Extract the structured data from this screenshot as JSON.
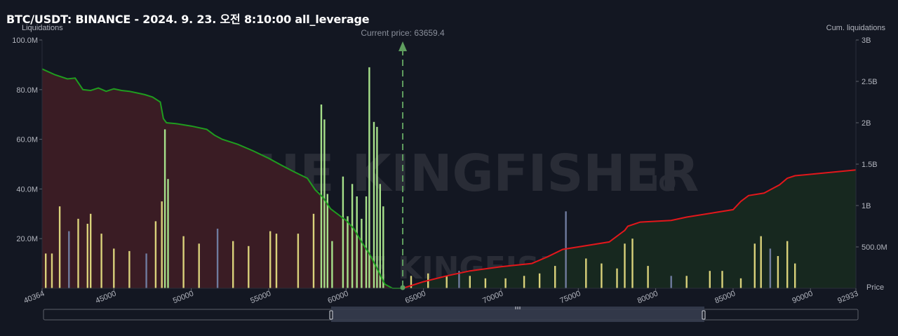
{
  "header": {
    "title": "BTC/USDT: BINANCE - 2024. 9. 23. 오전 8:10:00 all_leverage"
  },
  "watermark": {
    "text": "THE KINGFISHER",
    "suffix": ".IO"
  },
  "colors": {
    "background": "#131722",
    "long_fill": "#3a1c24",
    "short_fill": "#17281f",
    "cum_long_line": "#1f9d1f",
    "cum_short_line": "#e3171b",
    "bar_yellow": "#d9d17a",
    "bar_green": "#a6e08a",
    "bar_blue": "#6f7b9e",
    "current_price_line": "#5f9e5f"
  },
  "chart_data": {
    "type": "bar",
    "y_left_label": "Liquidations",
    "y_right_label": "Cum. liquidations",
    "x_label": "Price",
    "x_range": [
      40364,
      92933
    ],
    "y_left_range": [
      0,
      100
    ],
    "y_right_range": [
      0,
      3000
    ],
    "x_ticks": [
      "40364",
      "45000",
      "50000",
      "55000",
      "60000",
      "65000",
      "70000",
      "75000",
      "80000",
      "85000",
      "90000",
      "92933"
    ],
    "y_left_ticks": [
      "20.0M",
      "40.0M",
      "60.0M",
      "80.0M",
      "100.0M"
    ],
    "y_right_ticks": [
      "500.0M",
      "1B",
      "1.5B",
      "2B",
      "2.5B",
      "3B"
    ],
    "current_price": 63659.4,
    "current_price_label": "Current price: 63659.4",
    "cum_long_series": {
      "x": [
        40364,
        41200,
        42000,
        42500,
        43000,
        43500,
        44000,
        44500,
        45000,
        45500,
        46000,
        46500,
        47000,
        47500,
        48000,
        48200,
        48400,
        49000,
        50000,
        51000,
        51500,
        52000,
        53000,
        54000,
        55000,
        55800,
        56500,
        57500,
        58000,
        58500,
        59000,
        59500,
        60000,
        60500,
        61000,
        61500,
        62000,
        62500,
        63000,
        63659
      ],
      "y": [
        2650,
        2580,
        2530,
        2540,
        2400,
        2390,
        2420,
        2380,
        2410,
        2390,
        2380,
        2360,
        2340,
        2310,
        2250,
        2050,
        2000,
        1990,
        1960,
        1920,
        1850,
        1800,
        1740,
        1660,
        1570,
        1490,
        1420,
        1330,
        1190,
        1100,
        960,
        890,
        820,
        720,
        560,
        420,
        240,
        50,
        0,
        0
      ]
    },
    "cum_short_series": {
      "x": [
        63659,
        65000,
        66500,
        68000,
        70000,
        72000,
        73000,
        74000,
        75000,
        77000,
        78000,
        78200,
        79000,
        81000,
        82000,
        84000,
        85000,
        85500,
        86000,
        87000,
        87500,
        88000,
        88500,
        89000,
        92933
      ],
      "y": [
        0,
        80,
        150,
        210,
        260,
        300,
        380,
        470,
        500,
        560,
        700,
        750,
        800,
        820,
        860,
        920,
        950,
        1050,
        1120,
        1150,
        1200,
        1250,
        1330,
        1360,
        1430
      ]
    },
    "peaks_note": "",
    "series": [
      {
        "name": "",
        "kind": "long_liquidation_bars",
        "x": [
          40600,
          41000,
          41500,
          42100,
          42700,
          43300,
          43500,
          44200,
          45000,
          46000,
          47100,
          47700,
          48100,
          48300,
          48500,
          49500,
          50500,
          51700,
          52700,
          53700,
          55100,
          55500,
          56900,
          57900,
          58400,
          58600,
          58800,
          59100,
          59800,
          60100,
          60400,
          60700,
          61000,
          61300,
          61500,
          61800,
          62000,
          62200,
          62400
        ],
        "y": [
          14,
          14,
          33,
          23,
          28,
          26,
          30,
          22,
          16,
          15,
          14,
          27,
          35,
          64,
          44,
          21,
          18,
          24,
          19,
          17,
          23,
          22,
          22,
          30,
          74,
          68,
          38,
          19,
          45,
          29,
          42,
          37,
          28,
          37,
          89,
          67,
          65,
          42,
          33
        ]
      },
      {
        "name": "",
        "kind": "short_liquidation_bars",
        "x": [
          64200,
          65300,
          66500,
          67300,
          68000,
          69000,
          70300,
          71500,
          72500,
          73500,
          74200,
          75500,
          76500,
          77500,
          78000,
          78500,
          79500,
          81000,
          82000,
          83500,
          84300,
          85500,
          86400,
          86800,
          87400,
          87900,
          88500,
          89000
        ],
        "y": [
          5,
          6,
          5,
          7,
          5,
          4,
          4,
          5,
          6,
          9,
          31,
          12,
          10,
          8,
          18,
          20,
          9,
          5,
          5,
          7,
          7,
          4,
          18,
          21,
          16,
          13,
          19,
          10
        ]
      }
    ]
  }
}
